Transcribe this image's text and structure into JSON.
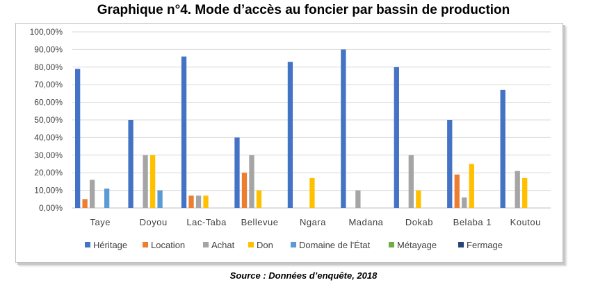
{
  "title": "Graphique n°4. Mode d’accès au foncier par bassin de production",
  "source": "Source : Données d’enquête, 2018",
  "chart_data": {
    "type": "bar",
    "categories": [
      "Taye",
      "Doyou",
      "Lac-Taba",
      "Bellevue",
      "Ngara",
      "Madana",
      "Dokab",
      "Belaba 1",
      "Koutou"
    ],
    "series": [
      {
        "name": "Héritage",
        "color": "#4472c4",
        "values": [
          79,
          50,
          86,
          40,
          83,
          90,
          80,
          50,
          67
        ]
      },
      {
        "name": "Location",
        "color": "#ed7d31",
        "values": [
          5,
          0,
          7,
          20,
          0,
          0,
          0,
          19,
          0
        ]
      },
      {
        "name": "Achat",
        "color": "#a5a5a5",
        "values": [
          16,
          30,
          7,
          30,
          0,
          10,
          30,
          6,
          21
        ]
      },
      {
        "name": "Don",
        "color": "#ffc000",
        "values": [
          0,
          30,
          7,
          10,
          17,
          0,
          10,
          25,
          17
        ]
      },
      {
        "name": "Domaine de l'État",
        "color": "#5b9bd5",
        "values": [
          11,
          10,
          0,
          0,
          0,
          0,
          0,
          0,
          0
        ]
      },
      {
        "name": "Métayage",
        "color": "#70ad47",
        "values": [
          0,
          0,
          0,
          0,
          0,
          0,
          0,
          0,
          0
        ]
      },
      {
        "name": "Fermage",
        "color": "#264478",
        "values": [
          0,
          0,
          0,
          0,
          0,
          0,
          0,
          0,
          0
        ]
      }
    ],
    "yticks": [
      "0,00%",
      "10,00%",
      "20,00%",
      "30,00%",
      "40,00%",
      "50,00%",
      "60,00%",
      "70,00%",
      "80,00%",
      "90,00%",
      "100,00%"
    ],
    "ylim": [
      0,
      100
    ],
    "grid": true,
    "legend_position": "bottom"
  }
}
